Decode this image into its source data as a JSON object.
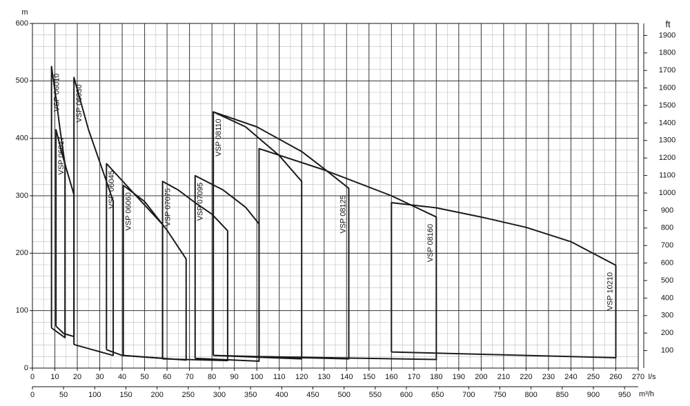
{
  "chart_data": {
    "type": "line",
    "y_label": "m",
    "y2_label": "ft",
    "x_label": "l/s",
    "x2_label": "m³/h",
    "xlim": [
      0,
      270
    ],
    "xticks": [
      0,
      10,
      20,
      30,
      40,
      50,
      60,
      70,
      80,
      90,
      100,
      110,
      120,
      130,
      140,
      150,
      160,
      170,
      180,
      190,
      200,
      210,
      220,
      230,
      240,
      250,
      260,
      270
    ],
    "x2lim": [
      0,
      972
    ],
    "x2ticks": [
      0,
      50,
      100,
      150,
      200,
      250,
      300,
      350,
      400,
      450,
      500,
      550,
      600,
      650,
      700,
      750,
      800,
      850,
      900,
      950
    ],
    "ylim": [
      0,
      600
    ],
    "yticks": [
      0,
      100,
      200,
      300,
      400,
      500,
      600
    ],
    "y2lim": [
      0,
      1968.5
    ],
    "y2ticks": [
      100,
      200,
      300,
      400,
      500,
      600,
      700,
      800,
      900,
      1000,
      1100,
      1200,
      1300,
      1400,
      1500,
      1600,
      1700,
      1800,
      1900
    ],
    "grid": true,
    "series": [
      {
        "name": "VSP 06010",
        "color": "#1a1a1a",
        "x": [
          8.5,
          8.5,
          10.5,
          12.5,
          14.5,
          14.5,
          8.5
        ],
        "values": [
          70,
          525,
          470,
          410,
          355,
          53,
          70
        ]
      },
      {
        "name": "VSP 06017",
        "color": "#1a1a1a",
        "x": [
          10.5,
          10.5,
          14,
          18.5,
          18.5,
          14,
          10.5
        ],
        "values": [
          73,
          415,
          362,
          302,
          55,
          60,
          73
        ]
      },
      {
        "name": "VSP 06030",
        "color": "#1a1a1a",
        "x": [
          18.5,
          18.5,
          25,
          33,
          36,
          36,
          18.5
        ],
        "values": [
          41,
          506,
          415,
          325,
          290,
          22,
          41
        ]
      },
      {
        "name": "VSP 06045",
        "color": "#1a1a1a",
        "x": [
          33,
          33,
          45,
          58,
          58,
          40,
          33
        ],
        "values": [
          32,
          356,
          305,
          250,
          17,
          22,
          32
        ]
      },
      {
        "name": "VSP 06060",
        "color": "#1a1a1a",
        "x": [
          40.5,
          40.5,
          50,
          60,
          68.5,
          68.5,
          40.5
        ],
        "values": [
          22,
          318,
          290,
          240,
          190,
          14,
          22
        ]
      },
      {
        "name": "VSP 07075",
        "color": "#1a1a1a",
        "x": [
          58,
          58,
          65,
          72.5,
          80,
          87,
          87,
          58
        ],
        "values": [
          16,
          325,
          310,
          288,
          268,
          239,
          13,
          16
        ]
      },
      {
        "name": "VSP 07095",
        "color": "#1a1a1a",
        "x": [
          72.5,
          72.5,
          85,
          95,
          101,
          101,
          72.5
        ],
        "values": [
          17,
          335,
          310,
          280,
          251,
          12,
          17
        ]
      },
      {
        "name": "VSP 08110",
        "color": "#1a1a1a",
        "x": [
          80.6,
          80.6,
          95,
          110,
          120,
          120,
          80.6
        ],
        "values": [
          22,
          446,
          420,
          370,
          325,
          16,
          22
        ]
      },
      {
        "name": "VSP 08125",
        "color": "#1a1a1a",
        "x": [
          80.6,
          80.6,
          100,
          120,
          130,
          141,
          141,
          80.6
        ],
        "values": [
          22,
          446,
          420,
          377,
          347,
          313,
          16,
          22
        ]
      },
      {
        "name": "VSP 08160",
        "color": "#1a1a1a",
        "x": [
          101,
          101,
          130,
          160,
          180,
          180,
          101
        ],
        "values": [
          20,
          382,
          345,
          300,
          263,
          15,
          20
        ]
      },
      {
        "name": "VSP 10210",
        "color": "#1a1a1a",
        "x": [
          160,
          160,
          180,
          200,
          220,
          240,
          260,
          260,
          160
        ],
        "values": [
          28,
          288,
          279,
          263,
          245,
          220,
          179,
          18,
          28
        ]
      }
    ]
  }
}
